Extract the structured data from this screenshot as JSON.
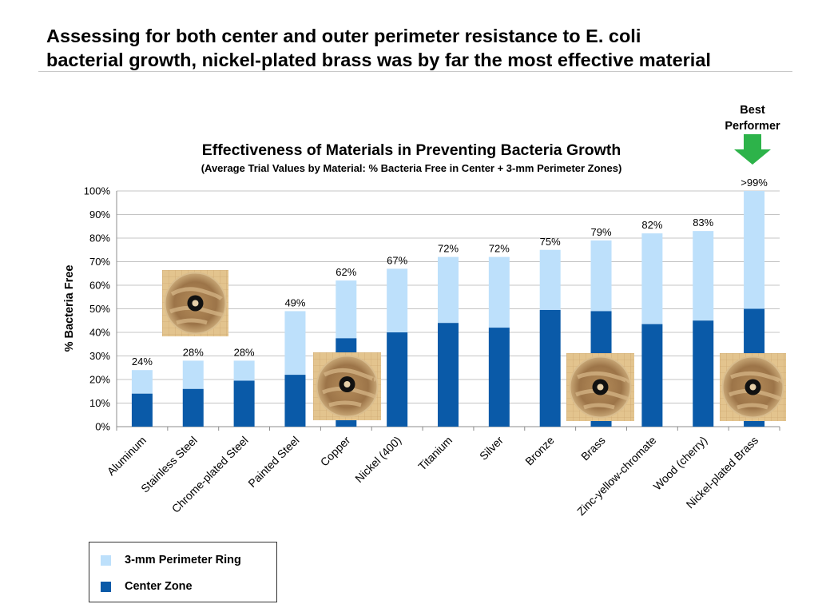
{
  "headline": {
    "line1": "Assessing for both center and outer perimeter resistance to E. coli",
    "line2": "bacterial growth, nickel-plated brass was by far the most effective material"
  },
  "callout": {
    "line1": "Best",
    "line2": "Performer",
    "arrow_color": "#2db34a"
  },
  "chart_data": {
    "type": "bar",
    "stacked": true,
    "title": "Effectiveness of Materials in Preventing Bacteria Growth",
    "subtitle": "(Average Trial Values by Material: % Bacteria Free in Center + 3-mm Perimeter Zones)",
    "xlabel": "",
    "ylabel": "% Bacteria Free",
    "ylim": [
      0,
      100
    ],
    "yticks": [
      "0%",
      "10%",
      "20%",
      "30%",
      "40%",
      "50%",
      "60%",
      "70%",
      "80%",
      "90%",
      "100%"
    ],
    "grid": true,
    "legend_position": "bottom-left",
    "categories": [
      "Aluminum",
      "Stainless Steel",
      "Chrome-plated Steel",
      "Painted Steel",
      "Copper",
      "Nickel (400)",
      "Titanium",
      "Silver",
      "Bronze",
      "Brass",
      "Zinc-yellow-chromate",
      "Wood (cherry)",
      "Nickel-plated Brass"
    ],
    "series": [
      {
        "name": "Center Zone",
        "color": "#0a5aa8",
        "values": [
          14,
          16,
          19.5,
          22,
          37.5,
          40,
          44,
          42,
          49.5,
          49,
          43.5,
          45,
          50
        ]
      },
      {
        "name": "3-mm Perimeter Ring",
        "color": "#bde0fb",
        "values": [
          10,
          12,
          8.5,
          27,
          24.5,
          27,
          28,
          30,
          25.5,
          30,
          38.5,
          38,
          50
        ]
      }
    ],
    "total_labels": [
      "24%",
      "28%",
      "28%",
      "49%",
      "62%",
      "67%",
      "72%",
      "72%",
      "75%",
      "79%",
      "82%",
      "83%",
      ">99%"
    ]
  }
}
